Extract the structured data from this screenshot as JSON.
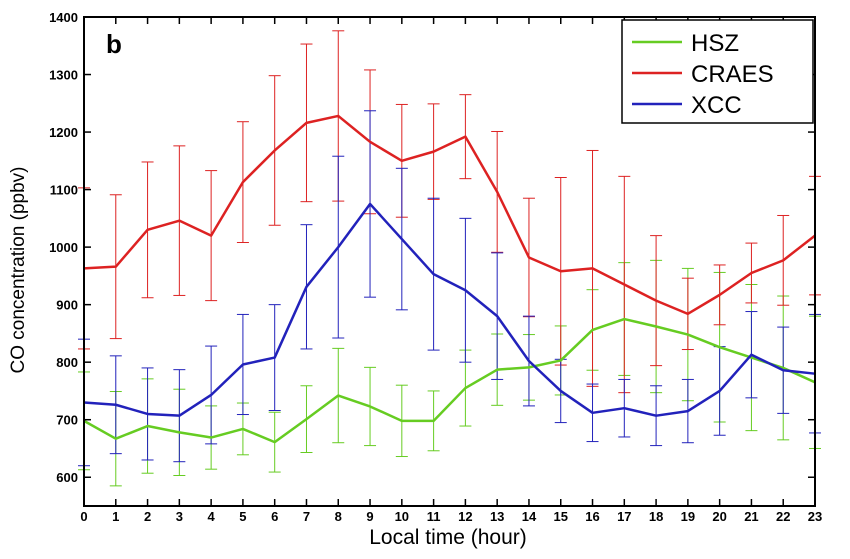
{
  "chart_data": {
    "type": "line",
    "panel_label": "b",
    "xlabel": "Local time (hour)",
    "ylabel": "CO concentration (ppbv)",
    "xlim": [
      0,
      23
    ],
    "ylim": [
      550,
      1400
    ],
    "x": [
      0,
      1,
      2,
      3,
      4,
      5,
      6,
      7,
      8,
      9,
      10,
      11,
      12,
      13,
      14,
      15,
      16,
      17,
      18,
      19,
      20,
      21,
      22,
      23
    ],
    "x_ticks": [
      "0",
      "1",
      "2",
      "3",
      "4",
      "5",
      "6",
      "7",
      "8",
      "9",
      "10",
      "11",
      "12",
      "13",
      "14",
      "15",
      "16",
      "17",
      "18",
      "19",
      "20",
      "21",
      "22",
      "23"
    ],
    "y_ticks": [
      600,
      700,
      800,
      900,
      1000,
      1100,
      1200,
      1300,
      1400
    ],
    "grid": false,
    "legend_position": "top-right",
    "error_bars": true,
    "series": [
      {
        "name": "HSZ",
        "color": "#66cc22",
        "values": [
          698,
          667,
          689,
          678,
          669,
          684,
          661,
          701,
          742,
          723,
          698,
          698,
          755,
          787,
          791,
          803,
          856,
          875,
          862,
          848,
          826,
          808,
          790,
          765
        ],
        "err": [
          85,
          82,
          82,
          75,
          55,
          45,
          52,
          58,
          82,
          68,
          62,
          52,
          66,
          62,
          57,
          60,
          70,
          98,
          115,
          115,
          130,
          127,
          125,
          115
        ]
      },
      {
        "name": "CRAES",
        "color": "#dd2222",
        "values": [
          963,
          966,
          1030,
          1046,
          1020,
          1113,
          1168,
          1216,
          1228,
          1183,
          1150,
          1166,
          1192,
          1096,
          982,
          958,
          963,
          935,
          907,
          884,
          917,
          955,
          977,
          1020
        ],
        "err": [
          140,
          125,
          118,
          130,
          113,
          105,
          130,
          137,
          148,
          125,
          98,
          83,
          73,
          105,
          103,
          163,
          205,
          188,
          113,
          62,
          52,
          52,
          78,
          103
        ]
      },
      {
        "name": "XCC",
        "color": "#2222bb",
        "values": [
          730,
          726,
          710,
          707,
          743,
          796,
          808,
          931,
          1000,
          1075,
          1014,
          953,
          925,
          880,
          802,
          750,
          712,
          720,
          707,
          715,
          750,
          813,
          786,
          780
        ],
        "err": [
          110,
          85,
          80,
          80,
          85,
          87,
          92,
          108,
          158,
          162,
          123,
          132,
          125,
          110,
          78,
          55,
          50,
          50,
          52,
          55,
          77,
          75,
          75,
          103
        ]
      }
    ]
  }
}
